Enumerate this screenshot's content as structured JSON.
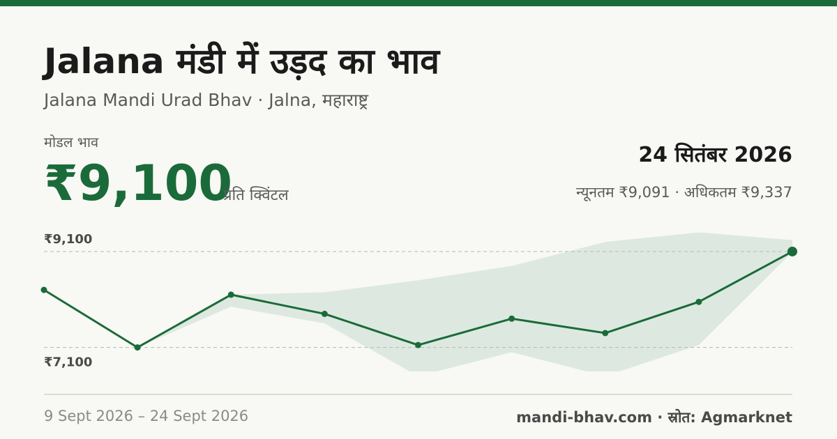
{
  "header": {
    "title": "Jalana मंडी में उड़द का भाव",
    "subtitle": "Jalana Mandi Urad Bhav · Jalna, महाराष्ट्र"
  },
  "price": {
    "label": "मोडल भाव",
    "value": "₹9,100",
    "unit": "प्रति क्विंटल",
    "date": "24 सितंबर 2026",
    "range": "न्यूनतम ₹9,091 · अधिकतम ₹9,337"
  },
  "footer": {
    "dates": "9 Sept 2026 – 24 Sept 2026",
    "source": "mandi-bhav.com · स्रोत: Agmarknet"
  },
  "chart_data": {
    "type": "line",
    "color": "#1b6b3a",
    "band_color": "#dde9e0",
    "values": [
      8300,
      7100,
      8200,
      7800,
      7150,
      7700,
      7400,
      8050,
      9100
    ],
    "band": {
      "min": [
        null,
        7100,
        7950,
        7600,
        6500,
        7000,
        6500,
        7150,
        9091
      ],
      "max": [
        null,
        7100,
        8200,
        8250,
        8500,
        8800,
        9300,
        9500,
        9337
      ]
    },
    "ylim": [
      6600,
      9550
    ],
    "yticks": [
      {
        "value": 9100,
        "label": "₹9,100"
      },
      {
        "value": 7100,
        "label": "₹7,100"
      }
    ]
  }
}
